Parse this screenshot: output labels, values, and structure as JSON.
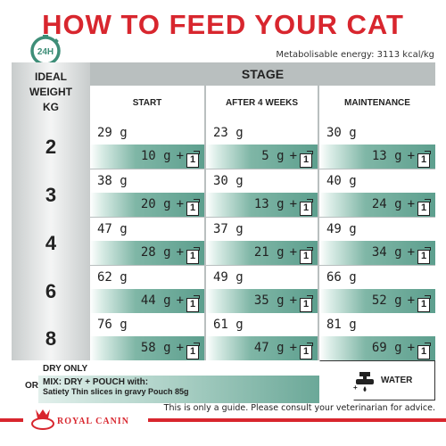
{
  "title": "HOW TO FEED YOUR CAT",
  "badge": {
    "label": "24H",
    "icon": "clock-24h-icon"
  },
  "energy": "Metabolisable energy: 3113 kcal/kg",
  "table": {
    "ideal_weight_label": "IDEAL WEIGHT KG",
    "stage_label": "STAGE",
    "stages": [
      "START",
      "AFTER 4 WEEKS",
      "MAINTENANCE"
    ],
    "rows": [
      {
        "weight": "2",
        "cells": [
          {
            "dry": "29 g",
            "mix": "10 g"
          },
          {
            "dry": "23 g",
            "mix": "5 g"
          },
          {
            "dry": "30 g",
            "mix": "13 g"
          }
        ]
      },
      {
        "weight": "3",
        "cells": [
          {
            "dry": "38 g",
            "mix": "20 g"
          },
          {
            "dry": "30 g",
            "mix": "13 g"
          },
          {
            "dry": "40 g",
            "mix": "24 g"
          }
        ]
      },
      {
        "weight": "4",
        "cells": [
          {
            "dry": "47 g",
            "mix": "28 g"
          },
          {
            "dry": "37 g",
            "mix": "21 g"
          },
          {
            "dry": "49 g",
            "mix": "34 g"
          }
        ]
      },
      {
        "weight": "6",
        "cells": [
          {
            "dry": "62 g",
            "mix": "44 g"
          },
          {
            "dry": "49 g",
            "mix": "35 g"
          },
          {
            "dry": "66 g",
            "mix": "52 g"
          }
        ]
      },
      {
        "weight": "8",
        "cells": [
          {
            "dry": "76 g",
            "mix": "58 g"
          },
          {
            "dry": "61 g",
            "mix": "47 g"
          },
          {
            "dry": "81 g",
            "mix": "69 g"
          }
        ]
      }
    ],
    "plus": "+",
    "pouch_count": "1"
  },
  "legend": {
    "dry_only": "DRY ONLY",
    "or": "OR",
    "mix_title": "MIX: DRY + POUCH with:",
    "mix_product": "Satiety Thin slices in gravy Pouch 85g",
    "water": "WATER",
    "water_icon": "water-tap-icon"
  },
  "footer": {
    "brand": "ROYAL CANIN",
    "note": "This is only a guide. Please consult your veterinarian for advice.",
    "accent": "#d8262e"
  },
  "colors": {
    "title": "#d8262e",
    "teal": "#5d9f8e",
    "grey": "#b9bfbf"
  }
}
